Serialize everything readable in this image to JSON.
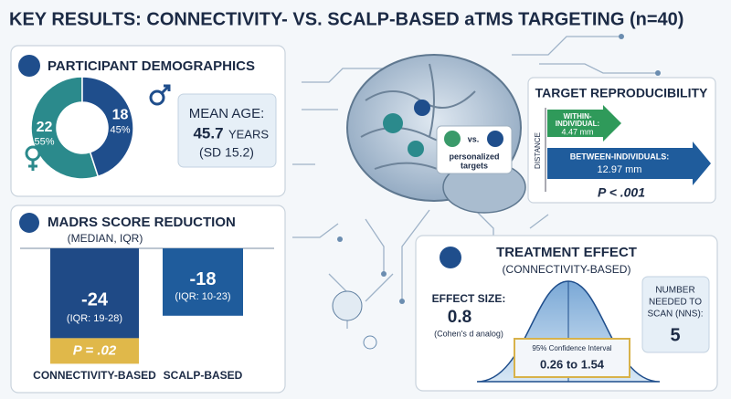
{
  "title": "KEY RESULTS: CONNECTIVITY- VS. SCALP-BASED aTMS TARGETING (n=40)",
  "demographics": {
    "title": "PARTICIPANT DEMOGRAPHICS",
    "female": {
      "count": 22,
      "percent": "55%",
      "color": "#2b8a8c"
    },
    "male": {
      "count": 18,
      "percent": "45%",
      "color": "#1f4e8c"
    },
    "mean_age": {
      "label": "MEAN AGE:",
      "value": "45.7",
      "unit": "YEARS",
      "sd": "(SD 15.2)"
    }
  },
  "madrs": {
    "title": "MADRS SCORE REDUCTION",
    "subtitle": "(MEDIAN, IQR)",
    "bars": [
      {
        "label": "CONNECTIVITY-BASED",
        "value": -24,
        "iqr": "(IQR: 19-28)",
        "p": "P = .02",
        "color": "#1f4a86"
      },
      {
        "label": "SCALP-BASED",
        "value": -18,
        "iqr": "(IQR: 10-23)",
        "color": "#1f5c9c"
      }
    ]
  },
  "brain": {
    "vs": "vs.",
    "personalized": [
      "personalized",
      "targets"
    ]
  },
  "reproducibility": {
    "title": "TARGET REPRODUCIBILITY",
    "axis": "DISTANCE",
    "within": {
      "label": [
        "WITHIN-",
        "INDIVIDUAL:"
      ],
      "value": "4.47 mm"
    },
    "between": {
      "label": "BETWEEN-INDIVIDUALS:",
      "value": "12.97 mm"
    },
    "p": "P < .001"
  },
  "treatment": {
    "title": "TREATMENT EFFECT",
    "subtitle": "(CONNECTIVITY-BASED)",
    "effect_label": "EFFECT SIZE:",
    "effect_value": "0.8",
    "effect_note": "(Cohen's d analog)",
    "ci_label": "95% Confidence Interval",
    "ci": "0.26 to 1.54",
    "nns_label": [
      "NUMBER",
      "NEEDED TO",
      "SCAN (NNS):"
    ],
    "nns": "5"
  }
}
